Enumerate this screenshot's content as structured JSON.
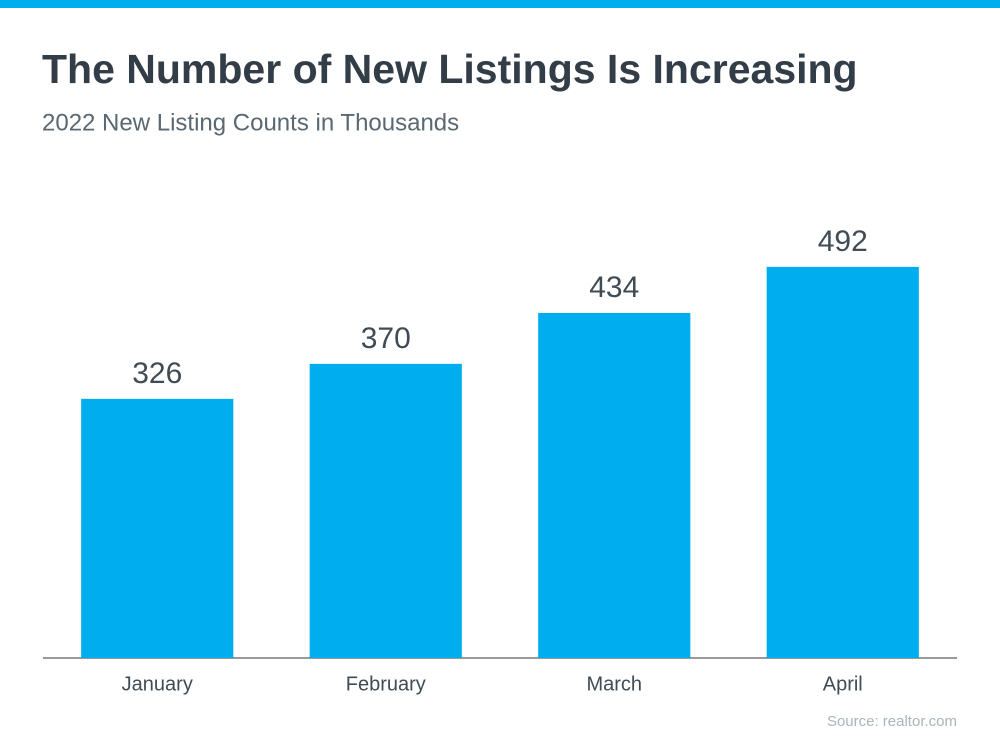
{
  "chart_data": {
    "type": "bar",
    "title": "The Number of New Listings Is Increasing",
    "subtitle": "2022 New Listing Counts in Thousands",
    "categories": [
      "January",
      "February",
      "March",
      "April"
    ],
    "values": [
      326,
      370,
      434,
      492
    ],
    "color": "#00aeef",
    "ylim": [
      0,
      600
    ],
    "source": "Source: realtor.com"
  }
}
